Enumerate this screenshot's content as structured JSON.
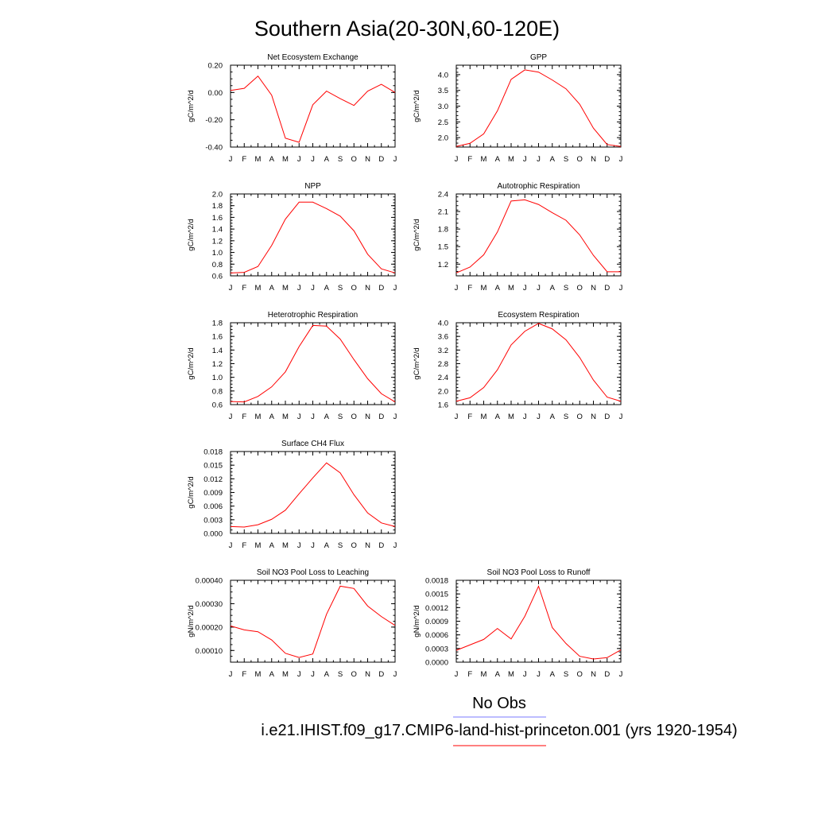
{
  "figure": {
    "title": "Southern Asia(20-30N,60-120E)",
    "legend": [
      {
        "label": "No Obs",
        "color": "#7b7bff"
      },
      {
        "label": "i.e21.IHIST.f09_g17.CMIP6-land-hist-princeton.001 (yrs 1920-1954)",
        "color": "#ff0000"
      }
    ]
  },
  "chart_data": [
    {
      "type": "line",
      "title": "Net Ecosystem Exchange",
      "ylabel": "gC/m^2/d",
      "categories": [
        "J",
        "F",
        "M",
        "A",
        "M",
        "J",
        "J",
        "A",
        "S",
        "O",
        "N",
        "D",
        "J"
      ],
      "yticks": [
        "0.20",
        "0.00",
        "-0.20",
        "-0.40"
      ],
      "ylim": [
        -0.4,
        0.2
      ],
      "series": [
        {
          "color": "#ff0000",
          "values": [
            0.015,
            0.03,
            0.12,
            -0.02,
            -0.335,
            -0.365,
            -0.09,
            0.01,
            -0.045,
            -0.095,
            0.01,
            0.06,
            0.0
          ]
        }
      ]
    },
    {
      "type": "line",
      "title": "GPP",
      "ylabel": "gC/m^2/d",
      "categories": [
        "J",
        "F",
        "M",
        "A",
        "M",
        "J",
        "J",
        "A",
        "S",
        "O",
        "N",
        "D",
        "J"
      ],
      "yticks": [
        "4.0",
        "3.5",
        "3.0",
        "2.5",
        "2.0"
      ],
      "ylim": [
        1.7,
        4.3
      ],
      "series": [
        {
          "color": "#ff0000",
          "values": [
            1.72,
            1.82,
            2.12,
            2.85,
            3.85,
            4.15,
            4.08,
            3.83,
            3.55,
            3.06,
            2.3,
            1.78,
            1.72
          ]
        }
      ]
    },
    {
      "type": "line",
      "title": "NPP",
      "ylabel": "gC/m^2/d",
      "categories": [
        "J",
        "F",
        "M",
        "A",
        "M",
        "J",
        "J",
        "A",
        "S",
        "O",
        "N",
        "D",
        "J"
      ],
      "yticks": [
        "2.0",
        "1.8",
        "1.6",
        "1.4",
        "1.2",
        "1.0",
        "0.8",
        "0.6"
      ],
      "ylim": [
        0.6,
        2.0
      ],
      "series": [
        {
          "color": "#ff0000",
          "values": [
            0.65,
            0.66,
            0.76,
            1.12,
            1.57,
            1.86,
            1.86,
            1.75,
            1.62,
            1.37,
            0.97,
            0.72,
            0.65
          ]
        }
      ]
    },
    {
      "type": "line",
      "title": "Autotrophic Respiration",
      "ylabel": "gC/m^2/d",
      "categories": [
        "J",
        "F",
        "M",
        "A",
        "M",
        "J",
        "J",
        "A",
        "S",
        "O",
        "N",
        "D",
        "J"
      ],
      "yticks": [
        "2.4",
        "2.1",
        "1.8",
        "1.5",
        "1.2"
      ],
      "ylim": [
        1.0,
        2.4
      ],
      "series": [
        {
          "color": "#ff0000",
          "values": [
            1.05,
            1.15,
            1.36,
            1.75,
            2.28,
            2.3,
            2.22,
            2.08,
            1.95,
            1.7,
            1.35,
            1.07,
            1.07
          ]
        }
      ]
    },
    {
      "type": "line",
      "title": "Heterotrophic Respiration",
      "ylabel": "gC/m^2/d",
      "categories": [
        "J",
        "F",
        "M",
        "A",
        "M",
        "J",
        "J",
        "A",
        "S",
        "O",
        "N",
        "D",
        "J"
      ],
      "yticks": [
        "1.8",
        "1.6",
        "1.4",
        "1.2",
        "1.0",
        "0.8",
        "0.6"
      ],
      "ylim": [
        0.6,
        1.8
      ],
      "series": [
        {
          "color": "#ff0000",
          "values": [
            0.645,
            0.64,
            0.72,
            0.86,
            1.08,
            1.45,
            1.76,
            1.75,
            1.56,
            1.26,
            0.98,
            0.76,
            0.64
          ]
        }
      ]
    },
    {
      "type": "line",
      "title": "Ecosystem Respiration",
      "ylabel": "gC/m^2/d",
      "categories": [
        "J",
        "F",
        "M",
        "A",
        "M",
        "J",
        "J",
        "A",
        "S",
        "O",
        "N",
        "D",
        "J"
      ],
      "yticks": [
        "4.0",
        "3.6",
        "3.2",
        "2.8",
        "2.4",
        "2.0",
        "1.6"
      ],
      "ylim": [
        1.6,
        4.0
      ],
      "series": [
        {
          "color": "#ff0000",
          "values": [
            1.7,
            1.8,
            2.1,
            2.62,
            3.35,
            3.75,
            3.98,
            3.82,
            3.5,
            2.98,
            2.32,
            1.82,
            1.7
          ]
        }
      ]
    },
    {
      "type": "line",
      "title": "Surface CH4 Flux",
      "ylabel": "gC/m^2/d",
      "categories": [
        "J",
        "F",
        "M",
        "A",
        "M",
        "J",
        "J",
        "A",
        "S",
        "O",
        "N",
        "D",
        "J"
      ],
      "yticks": [
        "0.018",
        "0.015",
        "0.012",
        "0.009",
        "0.006",
        "0.003",
        "0.000"
      ],
      "ylim": [
        0.0,
        0.018
      ],
      "series": [
        {
          "color": "#ff0000",
          "values": [
            0.0015,
            0.0014,
            0.0019,
            0.0031,
            0.0051,
            0.0087,
            0.0122,
            0.0155,
            0.0133,
            0.0085,
            0.0045,
            0.0023,
            0.0015
          ]
        }
      ]
    },
    {
      "type": "line",
      "title": "Soil NO3 Pool Loss to Leaching",
      "ylabel": "gN/m^2/d",
      "categories": [
        "J",
        "F",
        "M",
        "A",
        "M",
        "J",
        "J",
        "A",
        "S",
        "O",
        "N",
        "D",
        "J"
      ],
      "yticks": [
        "0.00040",
        "0.00030",
        "0.00020",
        "0.00010"
      ],
      "ylim": [
        5e-05,
        0.0004
      ],
      "series": [
        {
          "color": "#ff0000",
          "values": [
            0.000205,
            0.000188,
            0.00018,
            0.000145,
            8.8e-05,
            7e-05,
            8.5e-05,
            0.000255,
            0.000375,
            0.000365,
            0.00029,
            0.000245,
            0.000207
          ]
        }
      ]
    },
    {
      "type": "line",
      "title": "Soil NO3 Pool Loss to Runoff",
      "ylabel": "gN/m^2/d",
      "categories": [
        "J",
        "F",
        "M",
        "A",
        "M",
        "J",
        "J",
        "A",
        "S",
        "O",
        "N",
        "D",
        "J"
      ],
      "yticks": [
        "0.0018",
        "0.0015",
        "0.0012",
        "0.0009",
        "0.0006",
        "0.0003",
        "0.0000"
      ],
      "ylim": [
        0.0,
        0.0018
      ],
      "series": [
        {
          "color": "#ff0000",
          "values": [
            0.00026,
            0.00038,
            0.0005,
            0.00074,
            0.00051,
            0.00101,
            0.00167,
            0.00076,
            0.00041,
            0.00013,
            7e-05,
            0.0001,
            0.00027
          ]
        }
      ]
    }
  ]
}
